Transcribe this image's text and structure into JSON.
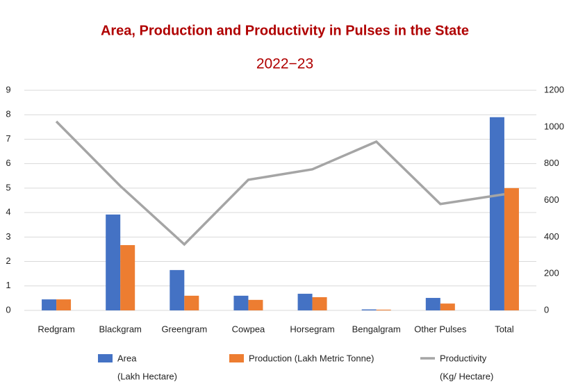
{
  "chart_data": {
    "type": "bar",
    "title": "Area, Production and Productivity in Pulses in the State",
    "subtitle": "2022−23",
    "categories": [
      "Redgram",
      "Blackgram",
      "Greengram",
      "Cowpea",
      "Horsegram",
      "Bengalgram",
      "Other Pulses",
      "Total"
    ],
    "series": [
      {
        "name": "Area",
        "unit": "(Lakh Hectare)",
        "type": "bar",
        "color": "#4472c4",
        "values": [
          0.45,
          3.92,
          1.65,
          0.6,
          0.68,
          0.04,
          0.51,
          7.9
        ]
      },
      {
        "name": "Production (Lakh Metric Tonne)",
        "type": "bar",
        "color": "#ed7d31",
        "values": [
          0.45,
          2.67,
          0.6,
          0.43,
          0.54,
          0.03,
          0.28,
          5.0
        ]
      },
      {
        "name": "Productivity",
        "unit": "(Kg/ Hectare)",
        "type": "line",
        "axis": "y2",
        "color": "#a5a5a5",
        "values": [
          1030,
          678,
          360,
          712,
          769,
          920,
          580,
          633
        ]
      }
    ],
    "ylim": [
      0,
      9
    ],
    "yticks": [
      0,
      1,
      2,
      3,
      4,
      5,
      6,
      7,
      8,
      9
    ],
    "y2lim": [
      0,
      1200
    ],
    "y2ticks": [
      0,
      200,
      400,
      600,
      800,
      1000,
      1200
    ],
    "grid": true
  }
}
